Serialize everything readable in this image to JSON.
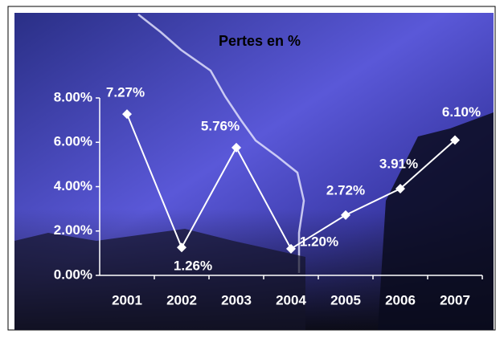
{
  "chart_data": {
    "type": "line",
    "title": "Pertes en %",
    "categories": [
      "2001",
      "2002",
      "2003",
      "2004",
      "2005",
      "2006",
      "2007"
    ],
    "values": [
      7.27,
      1.26,
      5.76,
      1.2,
      2.72,
      3.91,
      6.1
    ],
    "value_labels": [
      "7.27%",
      "1.26%",
      "5.76%",
      "1.20%",
      "2.72%",
      "3.91%",
      "6.10%"
    ],
    "color": "#ffffff",
    "ylim": [
      0,
      8
    ],
    "yticks": [
      {
        "value": 0,
        "label": "0.00%"
      },
      {
        "value": 2,
        "label": "2.00%"
      },
      {
        "value": 4,
        "label": "4.00%"
      },
      {
        "value": 6,
        "label": "6.00%"
      },
      {
        "value": 8,
        "label": "8.00%"
      }
    ]
  }
}
